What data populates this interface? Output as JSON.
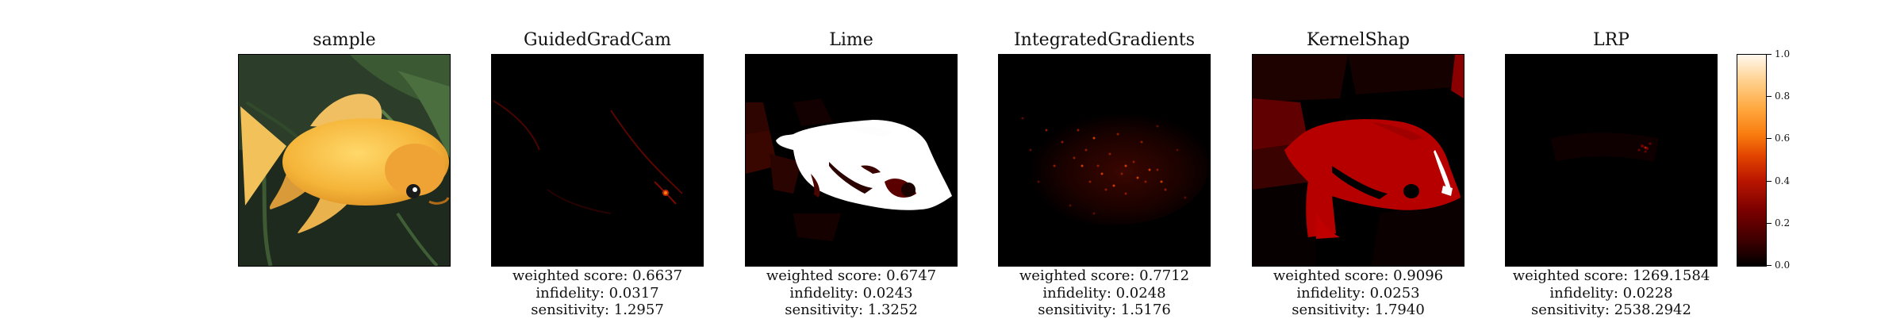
{
  "panels": [
    {
      "title": "sample"
    },
    {
      "title": "GuidedGradCam",
      "weighted_score": "weighted score: 0.6637",
      "infidelity": "infidelity: 0.0317",
      "sensitivity": "sensitivity: 1.2957"
    },
    {
      "title": "Lime",
      "weighted_score": "weighted score: 0.6747",
      "infidelity": "infidelity: 0.0243",
      "sensitivity": "sensitivity: 1.3252"
    },
    {
      "title": "IntegratedGradients",
      "weighted_score": "weighted score: 0.7712",
      "infidelity": "infidelity: 0.0248",
      "sensitivity": "sensitivity: 1.5176"
    },
    {
      "title": "KernelShap",
      "weighted_score": "weighted score: 0.9096",
      "infidelity": "infidelity: 0.0253",
      "sensitivity": "sensitivity: 1.7940"
    },
    {
      "title": "LRP",
      "weighted_score": "weighted score: 1269.1584",
      "infidelity": "infidelity: 0.0228",
      "sensitivity": "sensitivity: 2538.2942"
    }
  ],
  "colorbar": {
    "ticks": [
      "1.0",
      "0.8",
      "0.6",
      "0.4",
      "0.2",
      "0.0"
    ],
    "colormap": [
      "#000000",
      "#7a0000",
      "#e24400",
      "#ffa63d",
      "#fff8ee"
    ]
  }
}
